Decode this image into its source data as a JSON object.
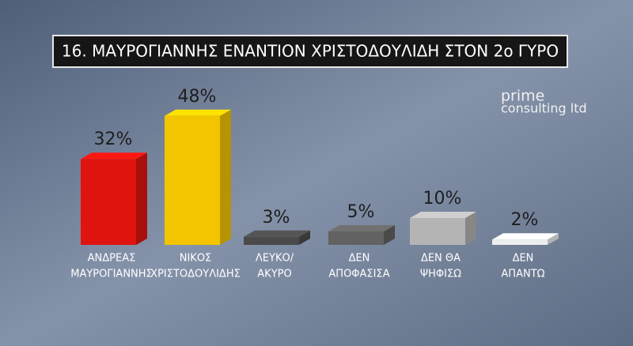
{
  "chart_data": {
    "type": "bar3d",
    "title": "16. ΜΑΥΡΟΓΙΑΝΝΗΣ ΕΝΑΝΤΙΟΝ ΧΡΙΣΤΟΔΟΥΛΙΔΗ ΣΤΟΝ 2ο ΓΥΡΟ",
    "categories": [
      [
        "ΑΝΔΡΕΑΣ",
        "ΜΑΥΡΟΓΙΑΝΝΗΣ"
      ],
      [
        "ΝΙΚΟΣ",
        "ΧΡΙΣΤΟΔΟΥΛΙΔΗΣ"
      ],
      [
        "ΛΕΥΚΟ/",
        "ΑΚΥΡΟ"
      ],
      [
        "ΔΕΝ",
        "ΑΠΟΦΑΣΙΣΑ"
      ],
      [
        "ΔΕΝ ΘΑ",
        "ΨΗΦΙΣΩ"
      ],
      [
        "ΔΕΝ",
        "ΑΠΑΝΤΩ"
      ]
    ],
    "values": [
      32,
      48,
      3,
      5,
      10,
      2
    ],
    "value_labels": [
      "32%",
      "48%",
      "3%",
      "5%",
      "10%",
      "2%"
    ],
    "colors": [
      "#e0140f",
      "#f2c500",
      "#4a4a4a",
      "#626262",
      "#b4b4b4",
      "#eeeeee"
    ],
    "logo": [
      "prime",
      "consulting ltd"
    ]
  }
}
